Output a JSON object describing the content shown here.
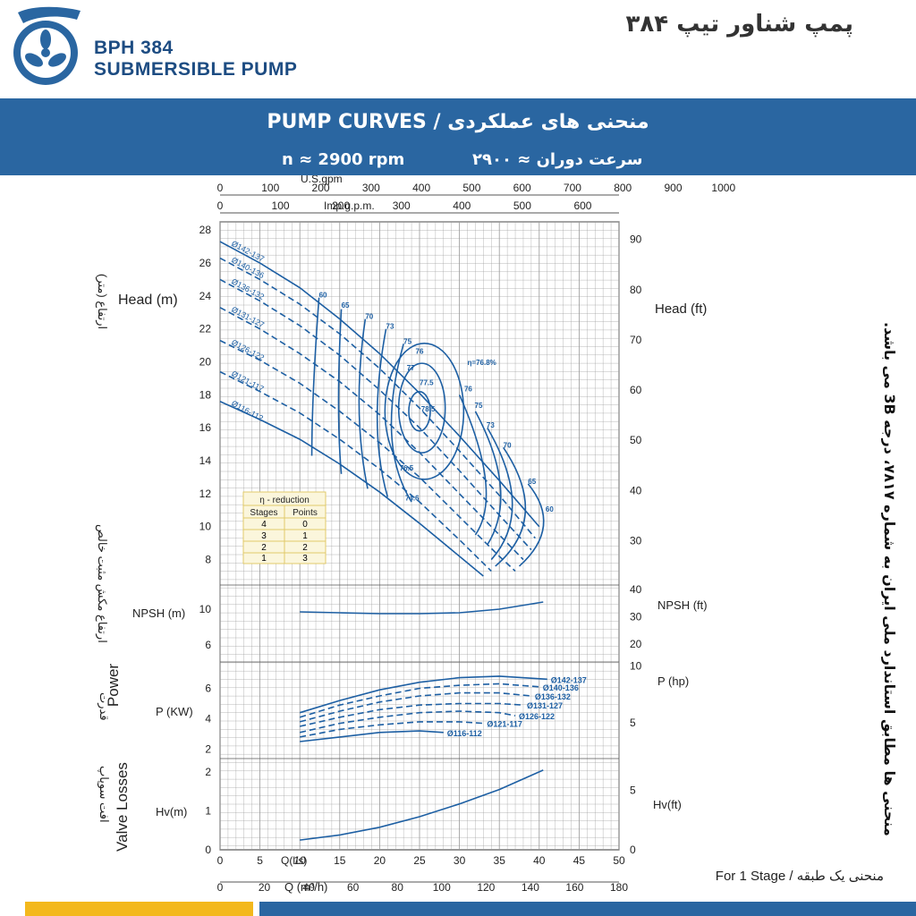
{
  "header": {
    "model": "BPH 384",
    "product": "SUBMERSIBLE PUMP",
    "title_fa": "پمپ شناور تیپ ۳۸۴"
  },
  "banner": {
    "title": "PUMP CURVES  /  منحنی های عملکردی",
    "rpm_en": "n ≈ 2900 rpm",
    "rpm_fa": "سرعت دوران ≈ ۲۹۰۰"
  },
  "side_note": "منحنی ها مطابق استاندارد ملی ایران به شماره ۷۸۱۷، درجه 3B می باشد.",
  "footer": {
    "stage_note": "For 1 Stage  /  منحنی یک طبقه"
  },
  "colors": {
    "curve": "#1d5fa3",
    "grid": "#9a9a9a",
    "banner": "#2a66a1",
    "accent_yellow": "#f3b81d"
  },
  "axis_labels": {
    "head_m": "Head (m)",
    "head_ft": "Head (ft)",
    "head_fa": "ارتفاع (متر)",
    "npsh_m": "NPSH (m)",
    "npsh_ft": "NPSH (ft)",
    "npsh_fa": "ارتفاع مکش مثبت خالص",
    "power_en": "Power",
    "power_fa": "قدرت",
    "power_kw": "P (KW)",
    "power_hp": "P (hp)",
    "hv_en": "Valve Losses",
    "hv_fa": "افت سوپاپ",
    "hv_m": "Hv(m)",
    "hv_ft": "Hv(ft)",
    "q_ls": "Q(l/s)",
    "q_m3h": "Q (m³/h)",
    "usgpm": "U.S.gpm",
    "impgpm": "Imp.g.p.m."
  },
  "reduction_table": {
    "title": "η - reduction",
    "headers": [
      "Stages",
      "Points"
    ],
    "rows": [
      [
        "4",
        "0"
      ],
      [
        "3",
        "1"
      ],
      [
        "2",
        "2"
      ],
      [
        "1",
        "3"
      ]
    ]
  },
  "chart_data": {
    "type": "line",
    "x_unit": "Q (l/s)",
    "xlim": [
      0,
      50
    ],
    "x_ticks_ls": [
      "0",
      "5",
      "10",
      "15",
      "20",
      "25",
      "30",
      "35",
      "40",
      "45",
      "50"
    ],
    "x_ticks_m3h": [
      "0",
      "20",
      "40",
      "60",
      "80",
      "100",
      "120",
      "140",
      "160",
      "180"
    ],
    "x_ticks_usgpm": [
      "0",
      "100",
      "200",
      "300",
      "400",
      "500",
      "600",
      "700",
      "800",
      "900",
      "1000"
    ],
    "x_ticks_impgpm": [
      "0",
      "100",
      "200",
      "300",
      "400",
      "500",
      "600"
    ],
    "head": {
      "ylim": [
        7,
        28.5
      ],
      "y_ticks": [
        "8",
        "10",
        "12",
        "14",
        "16",
        "18",
        "20",
        "22",
        "24",
        "26",
        "28"
      ],
      "y_ticks_ft": [
        "30",
        "40",
        "50",
        "60",
        "70",
        "80",
        "90"
      ],
      "series": [
        {
          "name": "Ø142-137",
          "style": "solid",
          "x": [
            0,
            5,
            10,
            15,
            20,
            25,
            30,
            35,
            40
          ],
          "y": [
            27.3,
            26.0,
            24.5,
            22.6,
            20.5,
            18.1,
            15.5,
            12.8,
            10.0
          ]
        },
        {
          "name": "Ø140-136",
          "style": "dashed",
          "x": [
            0,
            5,
            10,
            15,
            20,
            25,
            30,
            35,
            39.5
          ],
          "y": [
            26.3,
            25.0,
            23.5,
            21.7,
            19.6,
            17.2,
            14.6,
            11.9,
            9.3
          ]
        },
        {
          "name": "Ø136-132",
          "style": "dashed",
          "x": [
            0,
            5,
            10,
            15,
            20,
            25,
            30,
            35,
            39
          ],
          "y": [
            25.0,
            23.7,
            22.2,
            20.4,
            18.3,
            16.0,
            13.4,
            10.7,
            8.6
          ]
        },
        {
          "name": "Ø131-127",
          "style": "dashed",
          "x": [
            0,
            5,
            10,
            15,
            20,
            25,
            30,
            35,
            38
          ],
          "y": [
            23.3,
            22.0,
            20.5,
            18.8,
            16.8,
            14.5,
            12.0,
            9.5,
            8.0
          ]
        },
        {
          "name": "Ø126-122",
          "style": "dashed",
          "x": [
            0,
            5,
            10,
            15,
            20,
            25,
            30,
            35,
            37
          ],
          "y": [
            21.3,
            20.1,
            18.7,
            17.0,
            15.1,
            13.0,
            10.6,
            8.2,
            7.3
          ]
        },
        {
          "name": "Ø121-117",
          "style": "dashed",
          "x": [
            0,
            5,
            10,
            15,
            20,
            25,
            30,
            34
          ],
          "y": [
            19.4,
            18.2,
            16.9,
            15.3,
            13.5,
            11.5,
            9.2,
            7.3
          ]
        },
        {
          "name": "Ø116-112",
          "style": "solid",
          "x": [
            0,
            5,
            10,
            15,
            20,
            25,
            30,
            33
          ],
          "y": [
            17.6,
            16.5,
            15.3,
            13.8,
            12.1,
            10.2,
            8.2,
            7.0
          ]
        }
      ],
      "efficiency_labels": [
        {
          "text": "60",
          "x": 12.4,
          "y": 23.9
        },
        {
          "text": "65",
          "x": 15.2,
          "y": 23.3
        },
        {
          "text": "70",
          "x": 18.2,
          "y": 22.6
        },
        {
          "text": "73",
          "x": 20.8,
          "y": 22.0
        },
        {
          "text": "75",
          "x": 23.0,
          "y": 21.1
        },
        {
          "text": "76",
          "x": 24.5,
          "y": 20.5
        },
        {
          "text": "77",
          "x": 23.4,
          "y": 19.5
        },
        {
          "text": "77.5",
          "x": 25.0,
          "y": 18.6
        },
        {
          "text": "78.5",
          "x": 25.2,
          "y": 17.0
        },
        {
          "text": "η=76.8%",
          "x": 31.0,
          "y": 19.8
        },
        {
          "text": "76",
          "x": 30.6,
          "y": 18.2
        },
        {
          "text": "75",
          "x": 31.9,
          "y": 17.2
        },
        {
          "text": "73",
          "x": 33.4,
          "y": 16.0
        },
        {
          "text": "70",
          "x": 35.5,
          "y": 14.8
        },
        {
          "text": "65",
          "x": 38.6,
          "y": 12.6
        },
        {
          "text": "60",
          "x": 40.8,
          "y": 10.9
        },
        {
          "text": "76.5",
          "x": 22.5,
          "y": 13.4
        },
        {
          "text": "74.6",
          "x": 23.2,
          "y": 11.6
        }
      ]
    },
    "npsh": {
      "ylim": [
        4.5,
        11.5
      ],
      "y_ticks": [
        "6",
        "10"
      ],
      "y_ticks_ft": [
        "20",
        "30",
        "40"
      ],
      "series": [
        {
          "name": "NPSH",
          "x": [
            10,
            15,
            20,
            25,
            30,
            35,
            40.5
          ],
          "y": [
            9.7,
            9.6,
            9.5,
            9.5,
            9.6,
            10.0,
            10.8
          ]
        }
      ]
    },
    "power": {
      "ylim": [
        1.5,
        7.5
      ],
      "y_ticks": [
        "2",
        "4",
        "6"
      ],
      "y_ticks_hp": [
        "5",
        "10"
      ],
      "series": [
        {
          "name": "Ø142-137",
          "style": "solid",
          "x": [
            10,
            15,
            20,
            25,
            30,
            35,
            41
          ],
          "y": [
            4.4,
            5.2,
            5.9,
            6.4,
            6.7,
            6.8,
            6.6
          ]
        },
        {
          "name": "Ø140-136",
          "style": "dashed",
          "x": [
            10,
            15,
            20,
            25,
            30,
            35,
            40
          ],
          "y": [
            4.1,
            4.9,
            5.5,
            6.0,
            6.2,
            6.3,
            6.1
          ]
        },
        {
          "name": "Ø136-132",
          "style": "dashed",
          "x": [
            10,
            15,
            20,
            25,
            30,
            35,
            39
          ],
          "y": [
            3.8,
            4.5,
            5.1,
            5.5,
            5.7,
            5.7,
            5.5
          ]
        },
        {
          "name": "Ø131-127",
          "style": "dashed",
          "x": [
            10,
            15,
            20,
            25,
            30,
            35,
            38
          ],
          "y": [
            3.5,
            4.1,
            4.6,
            4.9,
            5.0,
            5.0,
            4.9
          ]
        },
        {
          "name": "Ø126-122",
          "style": "dashed",
          "x": [
            10,
            15,
            20,
            25,
            30,
            35,
            37
          ],
          "y": [
            3.1,
            3.7,
            4.1,
            4.4,
            4.5,
            4.4,
            4.2
          ]
        },
        {
          "name": "Ø121-117",
          "style": "dashed",
          "x": [
            10,
            15,
            20,
            25,
            30,
            33
          ],
          "y": [
            2.8,
            3.3,
            3.6,
            3.8,
            3.8,
            3.7
          ]
        },
        {
          "name": "Ø116-112",
          "style": "solid",
          "x": [
            10,
            15,
            20,
            25,
            28
          ],
          "y": [
            2.5,
            2.8,
            3.1,
            3.2,
            3.1
          ]
        }
      ]
    },
    "valve_losses": {
      "ylim": [
        0,
        2.3
      ],
      "y_ticks": [
        "0",
        "1",
        "2"
      ],
      "y_ticks_ft": [
        "0",
        "5"
      ],
      "series": [
        {
          "name": "Hv",
          "x": [
            10,
            15,
            20,
            25,
            30,
            35,
            40.5
          ],
          "y": [
            0.25,
            0.38,
            0.58,
            0.85,
            1.18,
            1.55,
            2.05
          ]
        }
      ]
    }
  }
}
